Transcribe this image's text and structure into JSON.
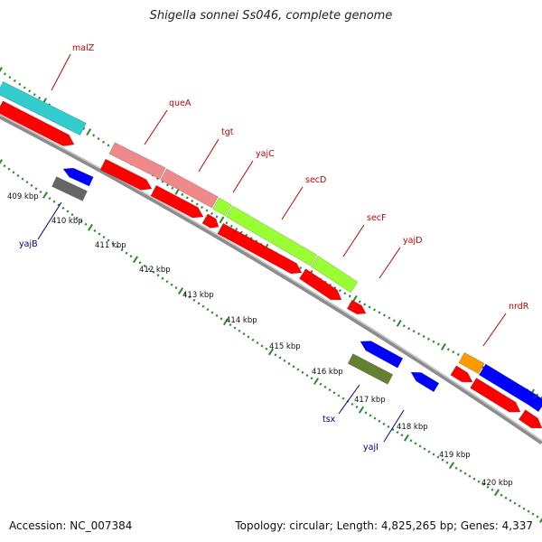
{
  "title": "Shigella sonnei Ss046, complete genome",
  "accession": "Accession: NC_007384",
  "topology": "Topology: circular; Length: 4,825,265 bp; Genes: 4,337",
  "colors": {
    "background": "#ffffff",
    "backbone": "#8c8c8c",
    "tick": "#2a8a2a",
    "label_forward": "#cc0000",
    "label_reverse": "#00008b",
    "cds": "#ff0000",
    "gene_cyan": "#33cccc",
    "gene_pink": "#f08a8a",
    "gene_lime": "#99ff33",
    "gene_orange": "#ff9900",
    "gene_blue": "#0000ff",
    "gene_gray": "#666666",
    "gene_olive": "#668033"
  },
  "kbp_labels": [
    "409 kbp",
    "410 kbp",
    "411 kbp",
    "412 kbp",
    "413 kbp",
    "414 kbp",
    "415 kbp",
    "416 kbp",
    "417 kbp",
    "418 kbp",
    "419 kbp",
    "420 kbp"
  ],
  "gene_labels": [
    {
      "text": "malZ",
      "strand": "forward"
    },
    {
      "text": "queA",
      "strand": "forward"
    },
    {
      "text": "tgt",
      "strand": "forward"
    },
    {
      "text": "yajC",
      "strand": "forward"
    },
    {
      "text": "secD",
      "strand": "forward"
    },
    {
      "text": "secF",
      "strand": "forward"
    },
    {
      "text": "yajD",
      "strand": "forward"
    },
    {
      "text": "nrdR",
      "strand": "forward"
    },
    {
      "text": "yajB",
      "strand": "reverse"
    },
    {
      "text": "tsx",
      "strand": "reverse"
    },
    {
      "text": "yajI",
      "strand": "reverse"
    }
  ]
}
